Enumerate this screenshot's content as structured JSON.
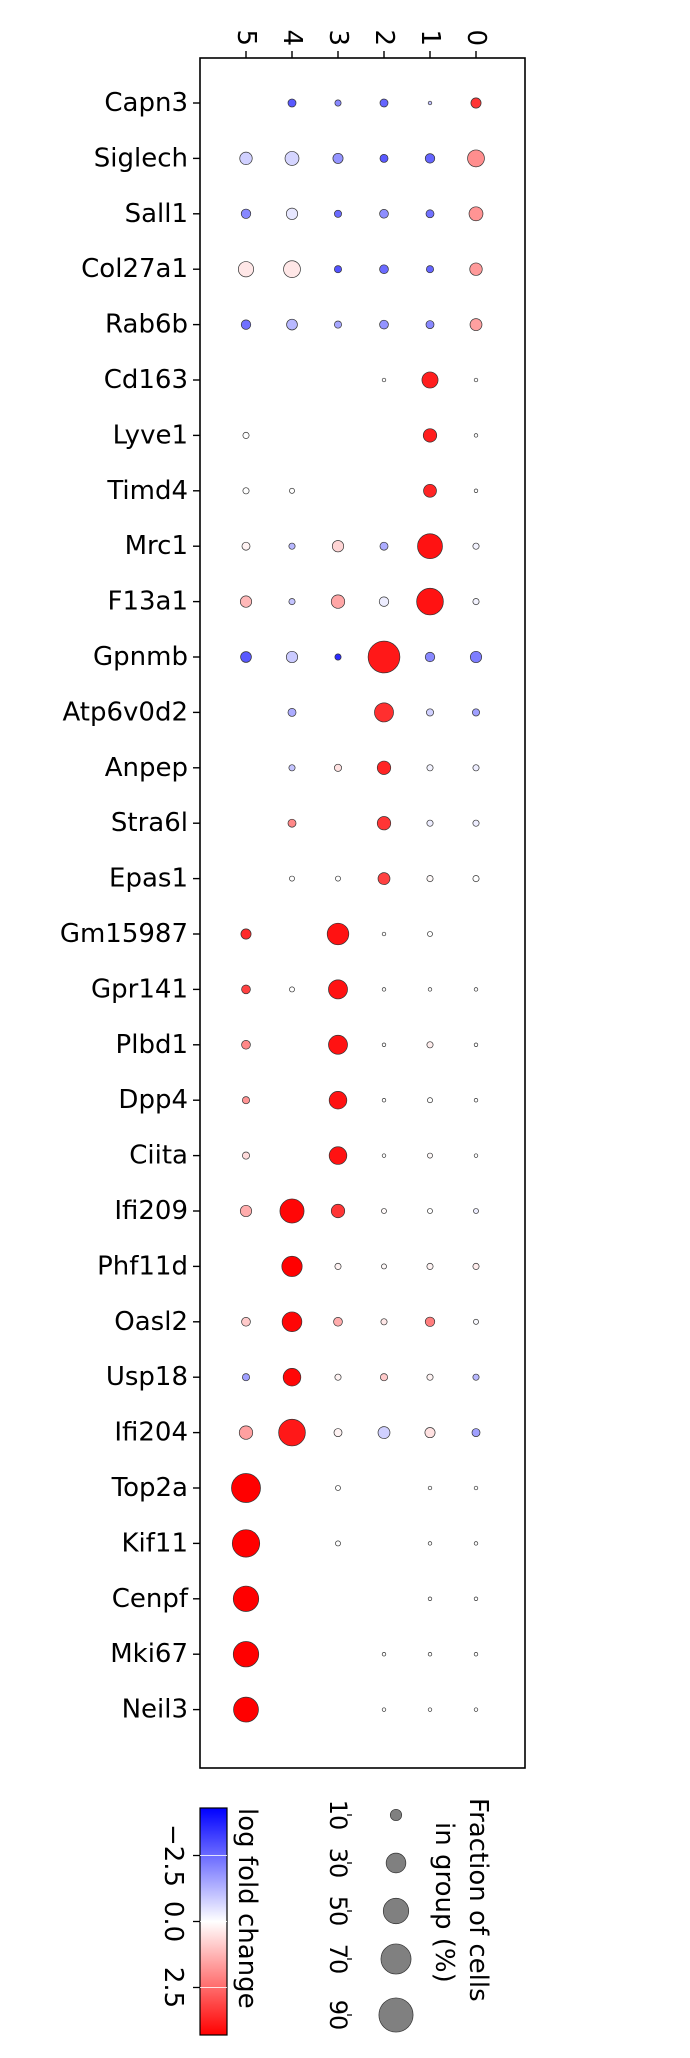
{
  "chart_data": {
    "type": "dotplot",
    "clusters": [
      "5",
      "4",
      "3",
      "2",
      "1",
      "0"
    ],
    "genes": [
      "Capn3",
      "Siglech",
      "Sall1",
      "Col27a1",
      "Rab6b",
      "Cd163",
      "Lyve1",
      "Timd4",
      "Mrc1",
      "F13a1",
      "Gpnmb",
      "Atp6v0d2",
      "Anpep",
      "Stra6l",
      "Epas1",
      "Gm15987",
      "Gpr141",
      "Plbd1",
      "Dpp4",
      "Ciita",
      "Ifi209",
      "Phf11d",
      "Oasl2",
      "Usp18",
      "Ifi204",
      "Top2a",
      "Kif11",
      "Cenpf",
      "Mki67",
      "Neil3"
    ],
    "note_cells": "each row lists values per cluster in order 5,4,3,2,1,0; frac = fraction of cells in group (%), lfc = log fold change; null = no dot",
    "frac": [
      [
        null,
        5,
        3,
        5,
        1,
        8
      ],
      [
        12,
        15,
        8,
        5,
        7,
        22
      ],
      [
        7,
        10,
        4,
        6,
        5,
        15
      ],
      [
        18,
        22,
        4,
        6,
        4,
        12
      ],
      [
        7,
        9,
        4,
        6,
        5,
        11
      ],
      [
        null,
        null,
        null,
        1,
        20,
        1
      ],
      [
        3,
        null,
        null,
        null,
        14,
        1
      ],
      [
        3,
        2,
        null,
        null,
        13,
        1
      ],
      [
        5,
        3,
        10,
        5,
        48,
        3
      ],
      [
        10,
        3,
        14,
        7,
        55,
        3
      ],
      [
        9,
        10,
        3,
        78,
        7,
        10
      ],
      [
        null,
        5,
        null,
        28,
        4,
        4
      ],
      [
        null,
        3,
        4,
        14,
        3,
        3
      ],
      [
        null,
        5,
        null,
        14,
        3,
        3
      ],
      [
        null,
        2,
        2,
        11,
        3,
        3
      ],
      [
        8,
        null,
        36,
        1,
        2,
        null
      ],
      [
        6,
        2,
        28,
        1,
        1,
        1
      ],
      [
        6,
        null,
        28,
        1,
        3,
        1
      ],
      [
        4,
        null,
        24,
        1,
        2,
        1
      ],
      [
        4,
        null,
        24,
        1,
        2,
        1
      ],
      [
        10,
        45,
        14,
        2,
        2,
        2
      ],
      [
        null,
        32,
        3,
        2,
        3,
        3
      ],
      [
        6,
        30,
        6,
        3,
        7,
        2
      ],
      [
        4,
        24,
        3,
        4,
        3,
        3
      ],
      [
        14,
        55,
        5,
        11,
        8,
        5
      ],
      [
        65,
        null,
        2,
        null,
        1,
        1
      ],
      [
        58,
        null,
        2,
        null,
        1,
        1
      ],
      [
        50,
        null,
        null,
        null,
        1,
        1
      ],
      [
        50,
        null,
        null,
        1,
        1,
        1
      ],
      [
        48,
        null,
        null,
        1,
        1,
        1
      ]
    ],
    "lfc": [
      [
        null,
        -2.8,
        -2.0,
        -2.6,
        -1.0,
        3.4
      ],
      [
        -0.8,
        -0.7,
        -1.8,
        -2.8,
        -2.6,
        1.9
      ],
      [
        -2.0,
        -0.4,
        -2.5,
        -1.9,
        -2.4,
        1.8
      ],
      [
        0.4,
        0.4,
        -2.9,
        -2.5,
        -2.6,
        1.7
      ],
      [
        -2.4,
        -1.2,
        -1.5,
        -1.8,
        -2.0,
        1.6
      ],
      [
        null,
        null,
        null,
        0.0,
        3.8,
        0.0
      ],
      [
        0.0,
        null,
        null,
        null,
        3.8,
        0.0
      ],
      [
        0.0,
        0.0,
        null,
        null,
        3.7,
        0.0
      ],
      [
        0.2,
        -1.2,
        0.7,
        -1.4,
        4.0,
        -0.2
      ],
      [
        1.2,
        -1.0,
        1.5,
        -0.3,
        4.0,
        -0.2
      ],
      [
        -2.8,
        -0.9,
        -3.6,
        3.9,
        -2.0,
        -2.2
      ],
      [
        null,
        -1.4,
        null,
        3.5,
        -0.8,
        -1.6
      ],
      [
        null,
        -1.0,
        0.5,
        3.7,
        -0.2,
        -0.3
      ],
      [
        null,
        2.0,
        null,
        3.4,
        -0.3,
        -0.3
      ],
      [
        null,
        0.0,
        0.0,
        3.2,
        0.1,
        0.0
      ],
      [
        3.6,
        null,
        4.0,
        0.0,
        0.0,
        null
      ],
      [
        3.2,
        0.0,
        4.0,
        0.0,
        0.0,
        0.0
      ],
      [
        2.0,
        null,
        4.0,
        0.0,
        0.3,
        0.0
      ],
      [
        1.8,
        null,
        4.0,
        0.0,
        0.0,
        0.0
      ],
      [
        0.6,
        null,
        4.0,
        0.0,
        0.1,
        0.0
      ],
      [
        1.4,
        4.2,
        3.4,
        0.1,
        0.0,
        -0.3
      ],
      [
        null,
        4.3,
        0.2,
        0.1,
        0.2,
        0.3
      ],
      [
        0.9,
        4.2,
        1.4,
        0.4,
        2.2,
        -0.1
      ],
      [
        -1.6,
        4.2,
        0.2,
        0.9,
        0.2,
        -1.2
      ],
      [
        1.6,
        3.9,
        0.2,
        -0.8,
        0.5,
        -1.6
      ],
      [
        4.3,
        null,
        0.0,
        null,
        0.0,
        0.0
      ],
      [
        4.3,
        null,
        0.0,
        null,
        0.0,
        0.0
      ],
      [
        4.3,
        null,
        null,
        null,
        0.0,
        0.0
      ],
      [
        4.3,
        null,
        null,
        0.0,
        0.0,
        0.0
      ],
      [
        4.3,
        null,
        null,
        0.0,
        0.0,
        0.0
      ]
    ],
    "colorbar": {
      "title": "log fold change",
      "range": [
        -4.3,
        4.3
      ],
      "ticks": [
        -2.5,
        0.0,
        2.5
      ],
      "tick_labels": [
        "−2.5",
        "0.0",
        "2.5"
      ],
      "colormap": "bwr",
      "colors": {
        "low": "#0000ff",
        "mid": "#ffffff",
        "high": "#ff0000"
      }
    },
    "size_legend": {
      "title_lines": [
        "Fraction of cells",
        "in group (%)"
      ],
      "values": [
        10,
        30,
        50,
        70,
        90
      ],
      "labels": [
        "10",
        "30",
        "50",
        "70",
        "90"
      ],
      "dot_color": "#808080"
    },
    "grid": false,
    "label_rotation": "90 deg clockwise for cluster labels and legends"
  }
}
